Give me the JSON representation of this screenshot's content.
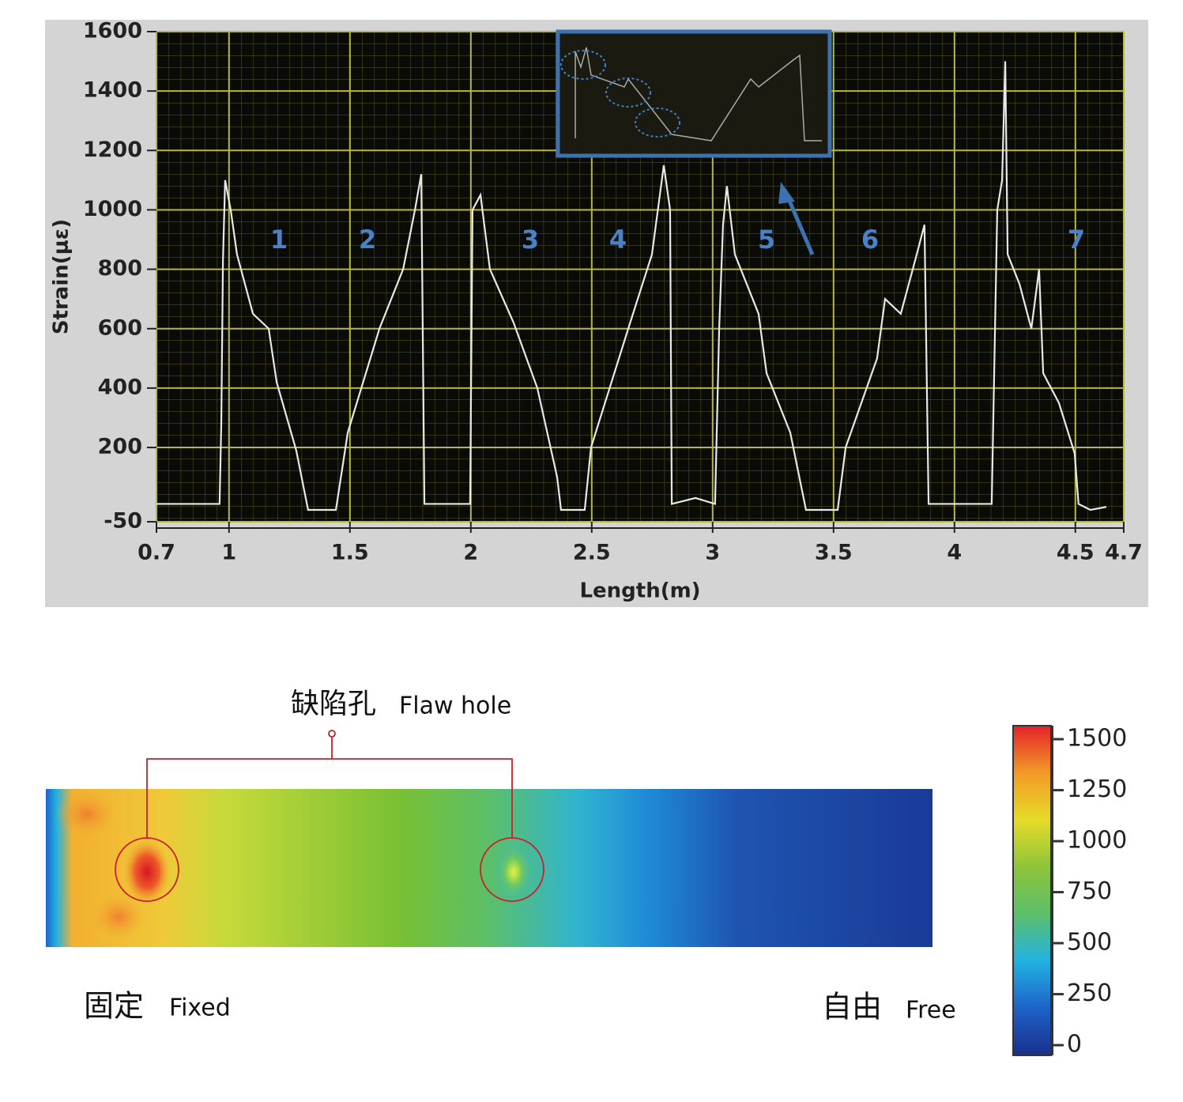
{
  "chart_data": [
    {
      "type": "line",
      "x_label": "Length(m)",
      "y_label": "Strain(με)",
      "xlim": [
        0.7,
        4.7
      ],
      "xticks": [
        0.7,
        1,
        1.5,
        2,
        2.5,
        3,
        3.5,
        4,
        4.5,
        4.7
      ],
      "ylim": [
        -50,
        1600
      ],
      "yticks": [
        -50,
        200,
        400,
        600,
        800,
        1000,
        1200,
        1400,
        1600
      ],
      "grid": true,
      "annotations": [
        "1",
        "2",
        "3",
        "4",
        "5",
        "6",
        "7"
      ],
      "series": [
        {
          "color": "#e8e8e8",
          "x": [
            0.7,
            0.961,
            0.968,
            0.975,
            0.984,
            1.007,
            1.033,
            1.099,
            1.164,
            1.197,
            1.278,
            1.327,
            1.442,
            1.491,
            1.622,
            1.72,
            1.769,
            1.795,
            1.808,
            1.997,
            2.007,
            2.04,
            2.079,
            2.177,
            2.275,
            2.357,
            2.373,
            2.471,
            2.497,
            2.651,
            2.749,
            2.798,
            2.824,
            2.831,
            2.929,
            3.01,
            3.027,
            3.043,
            3.059,
            3.092,
            3.19,
            3.223,
            3.321,
            3.386,
            3.517,
            3.55,
            3.68,
            3.713,
            3.778,
            3.844,
            3.876,
            3.893,
            4.154,
            4.177,
            4.197,
            4.21,
            4.22,
            4.269,
            4.318,
            4.35,
            4.367,
            4.432,
            4.497,
            4.513,
            4.562,
            4.628
          ],
          "values": [
            10,
            10,
            280,
            830,
            1100,
            1000,
            850,
            650,
            600,
            420,
            190,
            -10,
            -10,
            250,
            600,
            800,
            1000,
            1120,
            10,
            10,
            1000,
            1050,
            800,
            620,
            400,
            100,
            -10,
            -10,
            200,
            600,
            850,
            1150,
            1000,
            10,
            30,
            10,
            600,
            950,
            1080,
            850,
            650,
            450,
            250,
            -10,
            -10,
            200,
            500,
            700,
            650,
            850,
            950,
            10,
            10,
            1000,
            1100,
            1500,
            850,
            750,
            600,
            800,
            450,
            350,
            180,
            10,
            -10,
            0
          ]
        }
      ]
    },
    {
      "type": "heatmap",
      "title": "缺陷孔",
      "subtitle": "Flaw hole",
      "left_label": "固定",
      "left_label_en": "Fixed",
      "right_label": "自由",
      "right_label_en": "Free",
      "colormap": [
        "#1a2f8c",
        "#1e62c8",
        "#22b2e2",
        "#5cbf6a",
        "#8ec43a",
        "#e6dc28",
        "#f29a26",
        "#e4222a"
      ],
      "clim": [
        -50,
        1566
      ],
      "cticks": [
        0,
        250,
        500,
        750,
        1000,
        1250,
        1500
      ]
    }
  ]
}
